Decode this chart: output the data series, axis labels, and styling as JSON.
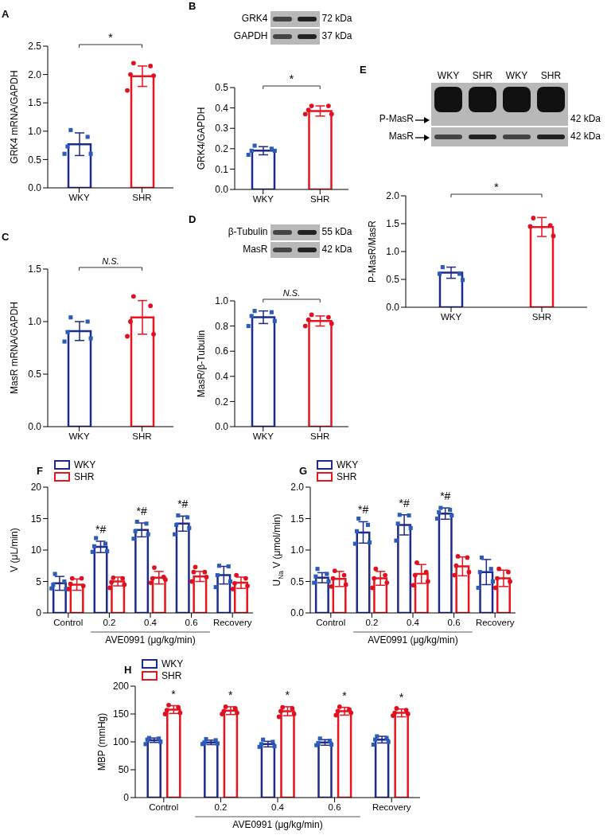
{
  "chart_data": [
    {
      "type": "bar",
      "title": "A",
      "ylabel": "GRK4 mRNA/GAPDH",
      "categories": [
        "WKY",
        "SHR"
      ],
      "values": [
        0.77,
        1.97
      ],
      "colors": [
        "#1e2a8c",
        "#e8141e"
      ],
      "errors": [
        0.2,
        0.18
      ],
      "ylim": [
        0,
        2.5
      ],
      "yticks": [
        {
          "value": 0,
          "label": "0.0"
        },
        0.5,
        {
          "value": 1,
          "label": "1.0"
        },
        1.5,
        {
          "value": 2,
          "label": "2.0"
        },
        2.5
      ],
      "annotations": [
        "*"
      ],
      "series": [
        {
          "type": "scatter",
          "color": "#2a5cb8",
          "marker": "square",
          "x": [
            "WKY",
            "WKY",
            "WKY",
            "WKY",
            "WKY"
          ],
          "values": [
            1.02,
            0.9,
            0.73,
            0.6,
            0.6
          ]
        },
        {
          "type": "scatter",
          "color": "#e01020",
          "marker": "circle",
          "x": [
            "SHR",
            "SHR",
            "SHR",
            "SHR",
            "SHR"
          ],
          "values": [
            2.2,
            2.15,
            2.0,
            1.98,
            1.72
          ]
        }
      ]
    },
    {
      "type": "bar",
      "title": "B",
      "ylabel": "GRK4/GAPDH",
      "categories": [
        "WKY",
        "SHR"
      ],
      "values": [
        0.19,
        0.385
      ],
      "colors": [
        "#1e2a8c",
        "#e8141e"
      ],
      "errors": [
        0.02,
        0.025
      ],
      "ylim": [
        0,
        0.5
      ],
      "yticks": [
        {
          "value": 0,
          "label": "0.0"
        },
        0.1,
        0.2,
        0.3,
        0.4,
        0.5
      ],
      "annotations": [
        "*",
        "GRK4",
        "72 kDa",
        "GAPDH",
        "37 kDa"
      ],
      "series": [
        {
          "type": "scatter",
          "color": "#2a5cb8",
          "marker": "square",
          "x": [
            "WKY",
            "WKY",
            "WKY",
            "WKY",
            "WKY"
          ],
          "values": [
            0.215,
            0.2,
            0.19,
            0.19,
            0.17
          ]
        },
        {
          "type": "scatter",
          "color": "#e01020",
          "marker": "circle",
          "x": [
            "SHR",
            "SHR",
            "SHR",
            "SHR",
            "SHR"
          ],
          "values": [
            0.41,
            0.41,
            0.39,
            0.37,
            0.37
          ]
        }
      ]
    },
    {
      "type": "bar",
      "title": "C",
      "ylabel": "MasR mRNA/GAPDH",
      "categories": [
        "WKY",
        "SHR"
      ],
      "values": [
        0.91,
        1.04
      ],
      "colors": [
        "#1e2a8c",
        "#e8141e"
      ],
      "errors": [
        0.09,
        0.16
      ],
      "ylim": [
        0,
        1.5
      ],
      "yticks": [
        {
          "value": 0,
          "label": "0.0"
        },
        0.5,
        {
          "value": 1,
          "label": "1.0"
        },
        1.5
      ],
      "annotations": [
        "N.S."
      ],
      "series": [
        {
          "type": "scatter",
          "color": "#2a5cb8",
          "marker": "square",
          "x": [
            "WKY",
            "WKY",
            "WKY",
            "WKY",
            "WKY"
          ],
          "values": [
            1.04,
            1.0,
            0.9,
            0.84,
            0.81
          ]
        },
        {
          "type": "scatter",
          "color": "#e01020",
          "marker": "circle",
          "x": [
            "SHR",
            "SHR",
            "SHR",
            "SHR",
            "SHR"
          ],
          "values": [
            1.24,
            1.15,
            1.0,
            0.88,
            0.86
          ]
        }
      ]
    },
    {
      "type": "bar",
      "title": "D",
      "ylabel": "MasR/β-Tubulin",
      "categories": [
        "WKY",
        "SHR"
      ],
      "values": [
        0.87,
        0.84
      ],
      "colors": [
        "#1e2a8c",
        "#e8141e"
      ],
      "errors": [
        0.05,
        0.04
      ],
      "ylim": [
        0,
        1
      ],
      "yticks": [
        {
          "value": 0,
          "label": "0.0"
        },
        0.2,
        0.4,
        0.6,
        0.8,
        {
          "value": 1,
          "label": "1.0"
        }
      ],
      "annotations": [
        "N.S.",
        "β-Tubulin",
        "55 kDa",
        "MasR",
        "42 kDa"
      ],
      "series": [
        {
          "type": "scatter",
          "color": "#2a5cb8",
          "marker": "square",
          "x": [
            "WKY",
            "WKY",
            "WKY",
            "WKY",
            "WKY"
          ],
          "values": [
            0.92,
            0.91,
            0.88,
            0.84,
            0.8
          ]
        },
        {
          "type": "scatter",
          "color": "#e01020",
          "marker": "circle",
          "x": [
            "SHR",
            "SHR",
            "SHR",
            "SHR",
            "SHR"
          ],
          "values": [
            0.89,
            0.87,
            0.85,
            0.82,
            0.8
          ]
        }
      ]
    },
    {
      "type": "bar",
      "title": "E",
      "ylabel": "P-MasR/MasR",
      "categories": [
        "WKY",
        "SHR"
      ],
      "values": [
        0.62,
        1.44
      ],
      "colors": [
        "#1e2a8c",
        "#e8141e"
      ],
      "errors": [
        0.1,
        0.17
      ],
      "ylim": [
        0,
        2
      ],
      "yticks": [
        {
          "value": 0,
          "label": "0.0"
        },
        0.5,
        {
          "value": 1,
          "label": "1.0"
        },
        1.5,
        {
          "value": 2,
          "label": "2.0"
        }
      ],
      "annotations": [
        "*",
        "P-MasR",
        "42 kDa",
        "MasR",
        "42 kDa"
      ],
      "series": [
        {
          "type": "scatter",
          "color": "#2a5cb8",
          "marker": "square",
          "x": [
            "WKY",
            "WKY",
            "WKY",
            "WKY"
          ],
          "values": [
            0.72,
            0.6,
            0.6,
            0.49
          ]
        },
        {
          "type": "scatter",
          "color": "#e01020",
          "marker": "circle",
          "x": [
            "SHR",
            "SHR",
            "SHR",
            "SHR"
          ],
          "values": [
            1.6,
            1.47,
            1.45,
            1.28
          ]
        }
      ]
    },
    {
      "type": "bar",
      "title": "F",
      "ylabel": "V (μL/min)",
      "xlabel": "AVE0991 (μg/kg/min)",
      "categories": [
        "Control",
        "0.2",
        "0.4",
        "0.6",
        "Recovery"
      ],
      "ylim": [
        0,
        20
      ],
      "yticks": [
        0,
        5,
        10,
        15,
        20
      ],
      "legend": "top left",
      "annotations": [
        "*#",
        "*#",
        "*#"
      ],
      "series": [
        {
          "name": "WKY",
          "color": "#1e2a8c",
          "values": [
            4.7,
            10.5,
            13.2,
            14.2,
            6.0
          ],
          "errors": [
            1.1,
            0.9,
            1.1,
            1.2,
            1.4
          ]
        },
        {
          "name": "SHR",
          "color": "#e8141e",
          "values": [
            4.5,
            5.0,
            5.6,
            5.8,
            4.8
          ],
          "errors": [
            0.9,
            0.7,
            1.0,
            0.8,
            0.9
          ]
        },
        {
          "type": "scatter",
          "color": "#2a5cb8",
          "marker": "square",
          "x": [
            "Control",
            "Control",
            "Control",
            "Control",
            "Control",
            "0.2",
            "0.2",
            "0.2",
            "0.2",
            "0.2",
            "0.4",
            "0.4",
            "0.4",
            "0.4",
            "0.4",
            "0.6",
            "0.6",
            "0.6",
            "0.6",
            "0.6",
            "Recovery",
            "Recovery",
            "Recovery",
            "Recovery",
            "Recovery"
          ],
          "values": [
            6.2,
            5.0,
            4.5,
            3.8,
            3.9,
            11.9,
            11.0,
            10.6,
            9.8,
            9.7,
            14.5,
            14.2,
            13.0,
            12.5,
            11.8,
            15.5,
            15.2,
            14.0,
            13.5,
            12.5,
            7.5,
            7.4,
            6.0,
            5.0,
            4.1
          ]
        },
        {
          "type": "scatter",
          "color": "#e01020",
          "marker": "circle",
          "x": [
            "Control",
            "Control",
            "Control",
            "Control",
            "Control",
            "0.2",
            "0.2",
            "0.2",
            "0.2",
            "0.2",
            "0.4",
            "0.4",
            "0.4",
            "0.4",
            "0.4",
            "0.6",
            "0.6",
            "0.6",
            "0.6",
            "0.6",
            "Recovery",
            "Recovery",
            "Recovery",
            "Recovery",
            "Recovery"
          ],
          "values": [
            5.5,
            5.5,
            4.6,
            4.3,
            3.8,
            5.6,
            5.5,
            4.9,
            4.5,
            4.0,
            7.2,
            5.7,
            5.5,
            5.3,
            4.8,
            7.3,
            6.5,
            6.5,
            5.7,
            5.0,
            6.0,
            5.5,
            4.7,
            4.3,
            3.8
          ]
        }
      ]
    },
    {
      "type": "bar",
      "title": "G",
      "ylabel": "U$_{Na}$ V (μmol/min)",
      "xlabel": "AVE0991 (μg/kg/min)",
      "categories": [
        "Control",
        "0.2",
        "0.4",
        "0.6",
        "Recovery"
      ],
      "ylim": [
        0,
        2
      ],
      "yticks": [
        {
          "value": 0,
          "label": "0.0"
        },
        0.5,
        {
          "value": 1,
          "label": "1.0"
        },
        1.5,
        {
          "value": 2,
          "label": "2.0"
        }
      ],
      "legend": "top left",
      "annotations": [
        "*#",
        "*#",
        "*#"
      ],
      "series": [
        {
          "name": "WKY",
          "color": "#1e2a8c",
          "values": [
            0.56,
            1.28,
            1.4,
            1.58,
            0.65
          ],
          "errors": [
            0.08,
            0.17,
            0.16,
            0.09,
            0.2
          ]
        },
        {
          "name": "SHR",
          "color": "#e8141e",
          "values": [
            0.54,
            0.55,
            0.62,
            0.74,
            0.55
          ],
          "errors": [
            0.12,
            0.11,
            0.15,
            0.15,
            0.13
          ]
        },
        {
          "type": "scatter",
          "color": "#2a5cb8",
          "marker": "square",
          "x": [
            "Control",
            "Control",
            "Control",
            "Control",
            "Control",
            "0.2",
            "0.2",
            "0.2",
            "0.2",
            "0.2",
            "0.4",
            "0.4",
            "0.4",
            "0.4",
            "0.4",
            "0.6",
            "0.6",
            "0.6",
            "0.6",
            "0.6",
            "Recovery",
            "Recovery",
            "Recovery",
            "Recovery",
            "Recovery"
          ],
          "values": [
            0.7,
            0.62,
            0.58,
            0.5,
            0.48,
            1.5,
            1.4,
            1.3,
            1.12,
            1.1,
            1.56,
            1.55,
            1.42,
            1.35,
            1.15,
            1.67,
            1.64,
            1.6,
            1.55,
            1.5,
            0.88,
            0.7,
            0.65,
            0.5,
            0.4
          ]
        },
        {
          "type": "scatter",
          "color": "#e01020",
          "marker": "circle",
          "x": [
            "Control",
            "Control",
            "Control",
            "Control",
            "Control",
            "0.2",
            "0.2",
            "0.2",
            "0.2",
            "0.2",
            "0.4",
            "0.4",
            "0.4",
            "0.4",
            "0.4",
            "0.6",
            "0.6",
            "0.6",
            "0.6",
            "0.6",
            "Recovery",
            "Recovery",
            "Recovery",
            "Recovery",
            "Recovery"
          ],
          "values": [
            0.67,
            0.6,
            0.55,
            0.45,
            0.42,
            0.7,
            0.6,
            0.55,
            0.48,
            0.4,
            0.8,
            0.65,
            0.6,
            0.5,
            0.44,
            0.9,
            0.88,
            0.75,
            0.65,
            0.6,
            0.7,
            0.65,
            0.55,
            0.5,
            0.4
          ]
        }
      ]
    },
    {
      "type": "bar",
      "title": "H",
      "ylabel": "MBP (mmHg)",
      "xlabel": "AVE0991 (μg/kg/min)",
      "categories": [
        "Control",
        "0.2",
        "0.4",
        "0.6",
        "Recovery"
      ],
      "ylim": [
        0,
        200
      ],
      "yticks": [
        0,
        50,
        100,
        150,
        200
      ],
      "legend": "top left",
      "annotations": [
        "*",
        "*",
        "*",
        "*",
        "*"
      ],
      "series": [
        {
          "name": "WKY",
          "color": "#1e2a8c",
          "values": [
            103,
            99,
            96,
            99,
            104
          ],
          "errors": [
            4,
            4,
            5,
            5,
            6
          ]
        },
        {
          "name": "SHR",
          "color": "#e8141e",
          "values": [
            158,
            156,
            155,
            155,
            152
          ],
          "errors": [
            7,
            7,
            8,
            7,
            7
          ]
        },
        {
          "type": "scatter",
          "color": "#2a5cb8",
          "marker": "square",
          "x": [
            "Control",
            "Control",
            "Control",
            "Control",
            "Control",
            "0.2",
            "0.2",
            "0.2",
            "0.2",
            "0.2",
            "0.4",
            "0.4",
            "0.4",
            "0.4",
            "0.4",
            "0.6",
            "0.6",
            "0.6",
            "0.6",
            "0.6",
            "Recovery",
            "Recovery",
            "Recovery",
            "Recovery",
            "Recovery"
          ],
          "values": [
            107,
            106,
            104,
            100,
            96,
            105,
            103,
            99,
            97,
            96,
            104,
            100,
            96,
            92,
            91,
            106,
            102,
            98,
            95,
            94,
            110,
            107,
            104,
            100,
            95
          ]
        },
        {
          "type": "scatter",
          "color": "#e01020",
          "marker": "circle",
          "x": [
            "Control",
            "Control",
            "Control",
            "Control",
            "Control",
            "0.2",
            "0.2",
            "0.2",
            "0.2",
            "0.2",
            "0.4",
            "0.4",
            "0.4",
            "0.4",
            "0.4",
            "0.6",
            "0.6",
            "0.6",
            "0.6",
            "0.6",
            "Recovery",
            "Recovery",
            "Recovery",
            "Recovery",
            "Recovery"
          ],
          "values": [
            166,
            162,
            157,
            152,
            150,
            163,
            160,
            155,
            152,
            150,
            162,
            160,
            155,
            150,
            145,
            163,
            158,
            155,
            152,
            148,
            160,
            157,
            152,
            150,
            147
          ]
        }
      ]
    }
  ]
}
